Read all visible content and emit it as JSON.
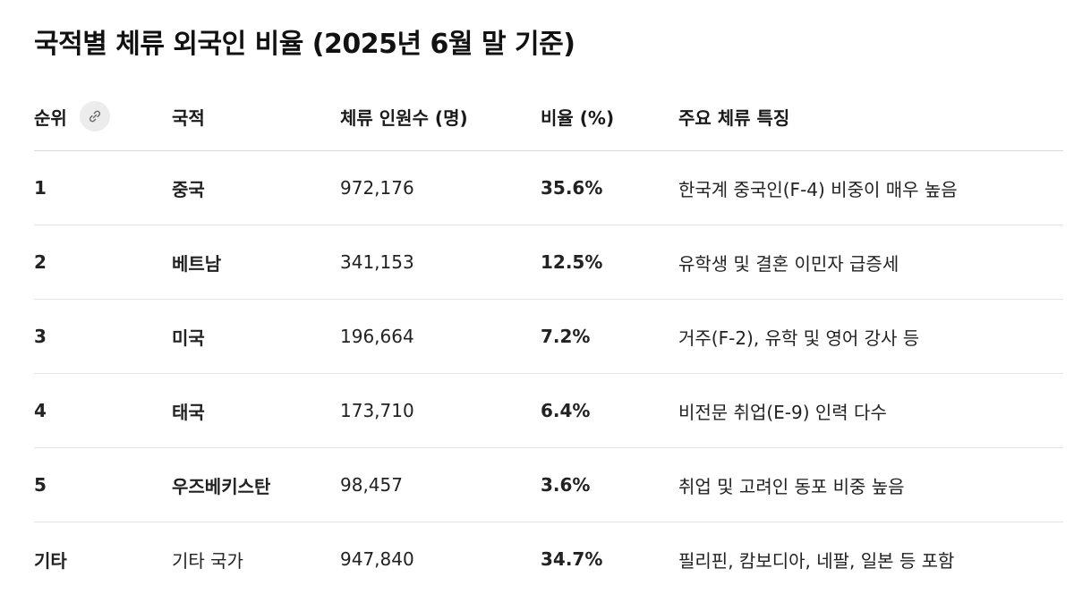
{
  "title": "국적별 체류 외국인 비율 (2025년 6월 말 기준)",
  "headers": {
    "rank": "순위",
    "nationality": "국적",
    "count": "체류 인원수 (명)",
    "ratio": "비율 (%)",
    "feature": "주요 체류 특징"
  },
  "icons": {
    "link": "link-icon"
  },
  "rows": [
    {
      "rank": "1",
      "nationality": "중국",
      "count": "972,176",
      "ratio": "35.6%",
      "feature": "한국계 중국인(F-4) 비중이 매우 높음"
    },
    {
      "rank": "2",
      "nationality": "베트남",
      "count": "341,153",
      "ratio": "12.5%",
      "feature": "유학생 및 결혼 이민자 급증세"
    },
    {
      "rank": "3",
      "nationality": "미국",
      "count": "196,664",
      "ratio": "7.2%",
      "feature": "거주(F-2), 유학 및 영어 강사 등"
    },
    {
      "rank": "4",
      "nationality": "태국",
      "count": "173,710",
      "ratio": "6.4%",
      "feature": "비전문 취업(E-9) 인력 다수"
    },
    {
      "rank": "5",
      "nationality": "우즈베키스탄",
      "count": "98,457",
      "ratio": "3.6%",
      "feature": "취업 및 고려인 동포 비중 높음"
    },
    {
      "rank": "기타",
      "nationality": "기타 국가",
      "count": "947,840",
      "ratio": "34.7%",
      "feature": "필리핀, 캄보디아, 네팔, 일본 등 포함"
    }
  ]
}
